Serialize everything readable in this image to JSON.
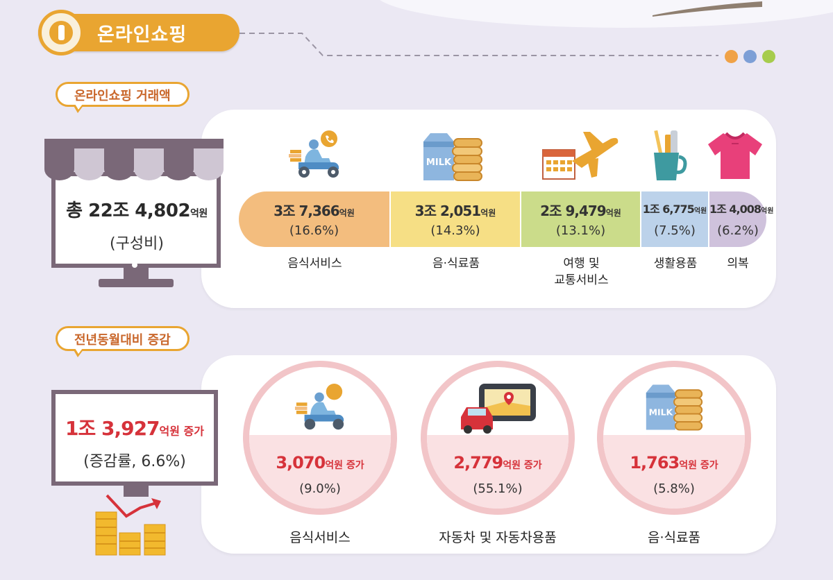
{
  "header": {
    "title": "온라인쇼핑"
  },
  "section1": {
    "label": "온라인쇼핑 거래액"
  },
  "total": {
    "amount": "총 22조 4,802",
    "unit": "억원",
    "note": "(구성비)"
  },
  "section2": {
    "label": "전년동월대비 증감"
  },
  "yoy": {
    "amount": "1조 3,927",
    "unit": "억원 증가",
    "note": "(증감률, 6.6%)"
  },
  "colors": {
    "accent": "#e9a531",
    "seg_food_service": "#f3bd7e",
    "seg_food": "#f6df85",
    "seg_travel": "#cbdc8a",
    "seg_living": "#bcd2ea",
    "seg_clothes": "#cfc2dc",
    "increase": "#d6323a",
    "ring": "#f2c5c8",
    "dot1": "#f0a246",
    "dot2": "#7d9fd6",
    "dot3": "#a6cc4c"
  },
  "chart_data": [
    {
      "type": "bar",
      "stacked": true,
      "orientation": "horizontal",
      "total": "22조 4,802억원",
      "categories": [
        "음식서비스",
        "음·식료품",
        "여행 및 교통서비스",
        "생활용품",
        "의복"
      ],
      "values": [
        37366,
        32051,
        29479,
        16775,
        14008
      ],
      "value_unit": "억원",
      "share_pct": [
        16.6,
        14.3,
        13.1,
        7.5,
        6.2
      ],
      "labels": [
        "3조 7,366",
        "3조 2,051",
        "2조 9,479",
        "1조 6,775",
        "1조 4,008"
      ],
      "pct_labels": [
        "(16.6%)",
        "(14.3%)",
        "(13.1%)",
        "(7.5%)",
        "(6.2%)"
      ],
      "name_lines": [
        [
          "음식서비스"
        ],
        [
          "음·식료품"
        ],
        [
          "여행 및",
          "교통서비스"
        ],
        [
          "생활용품"
        ],
        [
          "의복"
        ]
      ],
      "unit_label": "억원",
      "icons": [
        "scooter-delivery-icon",
        "milk-bread-icon",
        "airplane-calendar-icon",
        "toothbrush-cup-icon",
        "tshirt-icon"
      ]
    },
    {
      "type": "table",
      "total_increase": "1조 3,927억원",
      "growth_rate_pct": 6.6,
      "categories": [
        "음식서비스",
        "자동차 및 자동차용품",
        "음·식료품"
      ],
      "increase": [
        3070,
        2779,
        1763
      ],
      "increase_unit": "억원",
      "growth_pct": [
        9.0,
        55.1,
        5.8
      ],
      "labels": [
        "3,070",
        "2,779",
        "1,763"
      ],
      "pct_labels": [
        "(9.0%)",
        "(55.1%)",
        "(5.8%)"
      ],
      "unit_label": "억원 증가",
      "icons": [
        "scooter-delivery-icon",
        "car-navigation-icon",
        "milk-bread-icon"
      ]
    }
  ]
}
